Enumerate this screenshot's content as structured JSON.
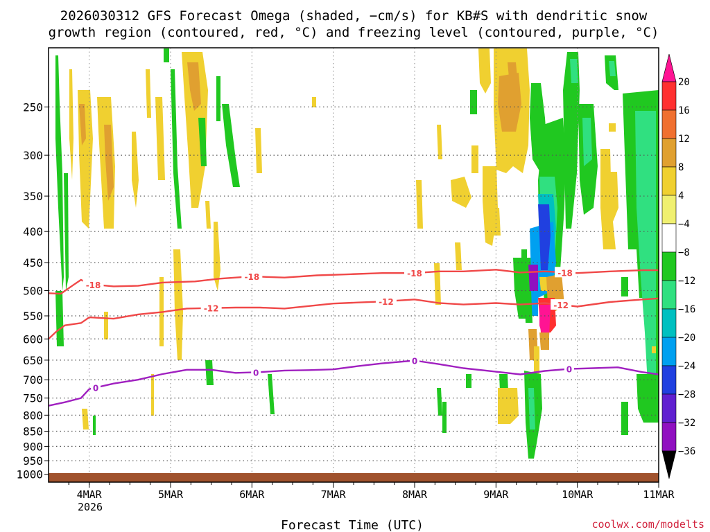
{
  "chart_data": {
    "type": "heatmap",
    "title_line1": "2026030312 GFS Forecast Omega (shaded, −cm/s) for KB#S with dendritic snow",
    "title_line2": "growth region (contoured, red, °C) and freezing level (contoured, purple, °C)",
    "xlabel": "Forecast Time (UTC)",
    "credit": "coolwx.com/modelts",
    "x_days": [
      "4MAR",
      "5MAR",
      "6MAR",
      "7MAR",
      "8MAR",
      "9MAR",
      "10MAR",
      "11MAR"
    ],
    "x_year": "2026",
    "x_range_days": [
      -0.5,
      7.0
    ],
    "y_ticks": [
      250,
      300,
      350,
      400,
      450,
      500,
      550,
      600,
      650,
      700,
      750,
      800,
      850,
      900,
      950,
      1000
    ],
    "y_range_hpa": [
      200,
      1030
    ],
    "colorbar_ticks": [
      20,
      16,
      12,
      8,
      4,
      -4,
      -8,
      -12,
      -16,
      -20,
      -24,
      -28,
      -32,
      -36
    ],
    "colorbar_colors": [
      "#ff1493",
      "#ff3030",
      "#f07030",
      "#e0a030",
      "#f0d030",
      "#f0f070",
      "#ffffff",
      "#20c820",
      "#30e080",
      "#00c0c0",
      "#00a0f0",
      "#2040e0",
      "#6020d0",
      "#9010c0",
      "#a0a0a0"
    ],
    "contours": [
      {
        "label": "-18",
        "color": "#f04848",
        "x": [
          -0.5,
          -0.35,
          -0.2,
          -0.1,
          0.0,
          0.3,
          0.6,
          0.9,
          1.3,
          1.6,
          2.0,
          2.4,
          2.8,
          3.2,
          3.6,
          4.0,
          4.3,
          4.6,
          5.0,
          5.3,
          5.6,
          6.0,
          6.4,
          6.8,
          7.0
        ],
        "y": [
          505,
          506,
          490,
          480,
          488,
          492,
          491,
          485,
          483,
          478,
          474,
          476,
          472,
          470,
          468,
          468,
          465,
          465,
          462,
          467,
          465,
          468,
          465,
          463,
          463
        ],
        "labels_at": [
          0.05,
          2.0,
          4.0,
          5.85
        ]
      },
      {
        "label": "-12",
        "color": "#f04848",
        "x": [
          -0.5,
          -0.4,
          -0.3,
          -0.1,
          0.0,
          0.3,
          0.6,
          0.9,
          1.2,
          1.5,
          1.8,
          2.1,
          2.4,
          2.7,
          3.0,
          3.3,
          3.6,
          4.0,
          4.3,
          4.6,
          5.0,
          5.3,
          5.6,
          6.0,
          6.4,
          6.8,
          7.0
        ],
        "y": [
          600,
          583,
          570,
          565,
          553,
          556,
          547,
          542,
          535,
          534,
          533,
          533,
          535,
          530,
          525,
          523,
          521,
          517,
          524,
          527,
          524,
          527,
          524,
          531,
          522,
          517,
          515
        ],
        "labels_at": [
          1.5,
          3.65,
          5.8
        ]
      },
      {
        "label": "0",
        "color": "#a020c0",
        "x": [
          -0.5,
          -0.3,
          -0.1,
          0.0,
          0.3,
          0.6,
          0.9,
          1.2,
          1.5,
          1.8,
          2.1,
          2.4,
          2.7,
          3.0,
          3.3,
          3.6,
          4.0,
          4.3,
          4.6,
          5.0,
          5.3,
          5.6,
          5.9,
          6.2,
          6.5,
          6.8,
          7.0
        ],
        "y": [
          772,
          762,
          750,
          725,
          710,
          700,
          685,
          674,
          674,
          682,
          680,
          676,
          675,
          673,
          665,
          658,
          651,
          660,
          670,
          679,
          686,
          677,
          672,
          670,
          668,
          680,
          686
        ],
        "labels_at": [
          0.08,
          2.05,
          4.0,
          5.9
        ]
      }
    ]
  }
}
